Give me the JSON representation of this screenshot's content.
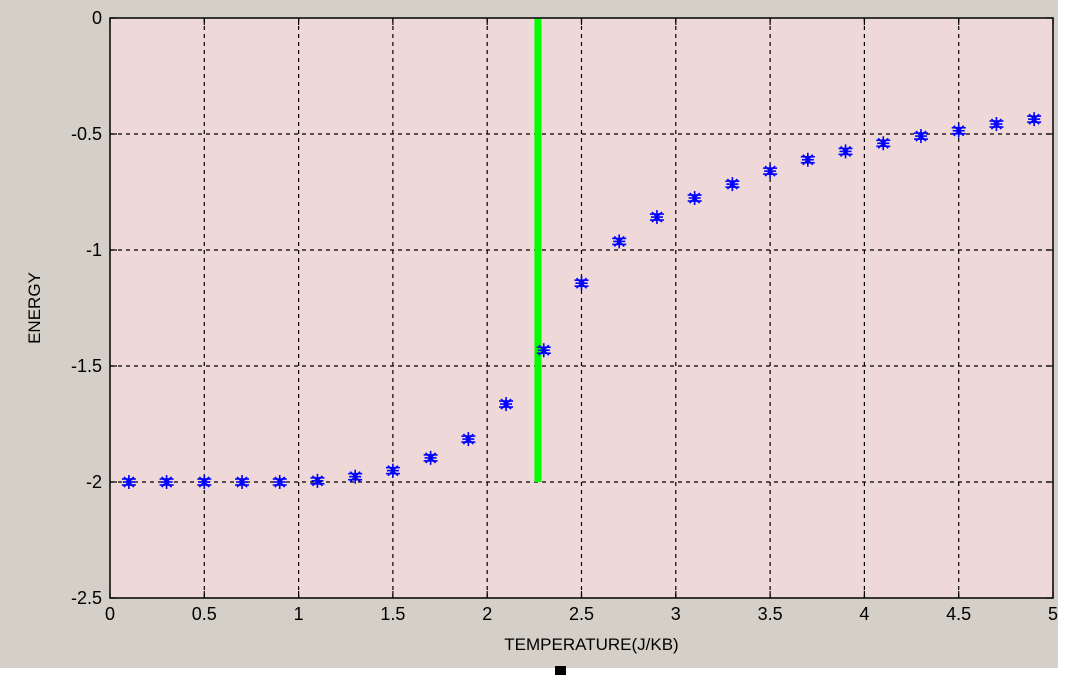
{
  "chart_data": {
    "type": "scatter",
    "title": "",
    "xlabel": "TEMPERATURE(J/KB)",
    "ylabel": "ENERGY",
    "xlim": [
      0,
      5
    ],
    "ylim": [
      -2.5,
      0
    ],
    "grid": true,
    "x_ticks": [
      "0",
      "0.5",
      "1",
      "1.5",
      "2",
      "2.5",
      "3",
      "3.5",
      "4",
      "4.5",
      "5"
    ],
    "y_ticks": [
      "0",
      "-0.5",
      "-1",
      "-1.5",
      "-2",
      "-2.5"
    ],
    "series": [
      {
        "marker": "asterisk with error bars",
        "color": "#0000ff",
        "x": [
          0.1,
          0.3,
          0.5,
          0.7,
          0.9,
          1.1,
          1.3,
          1.5,
          1.7,
          1.9,
          2.1,
          2.3,
          2.5,
          2.7,
          2.9,
          3.1,
          3.3,
          3.5,
          3.7,
          3.9,
          4.1,
          4.3,
          4.5,
          4.7,
          4.9
        ],
        "y": [
          -2.0,
          -2.0,
          -2.0,
          -2.0,
          -2.0,
          -1.995,
          -1.977,
          -1.951,
          -1.896,
          -1.815,
          -1.664,
          -1.432,
          -1.143,
          -0.963,
          -0.858,
          -0.776,
          -0.716,
          -0.66,
          -0.611,
          -0.575,
          -0.54,
          -0.509,
          -0.486,
          -0.457,
          -0.436
        ]
      }
    ],
    "reference_line": {
      "color": "#00ff00",
      "x": 2.269,
      "y": [
        -2.0,
        0
      ]
    },
    "plot_background": "#eed8d8",
    "figure_background": "#d4d0c8"
  }
}
